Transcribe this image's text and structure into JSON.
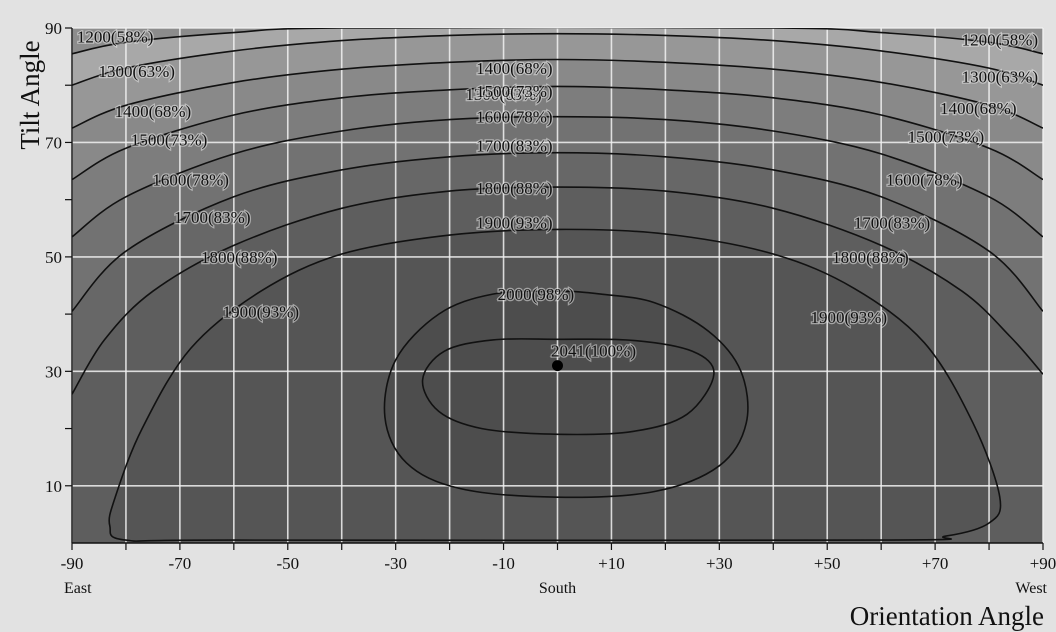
{
  "chart_data": {
    "type": "contour",
    "title": "",
    "xlabel": "Orientation Angle",
    "ylabel": "Tilt Angle",
    "xlim": [
      -90,
      90
    ],
    "ylim": [
      0,
      90
    ],
    "x_ticks": [
      {
        "value": -90,
        "label": "-90"
      },
      {
        "value": -70,
        "label": "-70"
      },
      {
        "value": -50,
        "label": "-50"
      },
      {
        "value": -30,
        "label": "-30"
      },
      {
        "value": -10,
        "label": "-10"
      },
      {
        "value": 10,
        "label": "+10"
      },
      {
        "value": 30,
        "label": "+30"
      },
      {
        "value": 50,
        "label": "+50"
      },
      {
        "value": 70,
        "label": "+70"
      },
      {
        "value": 90,
        "label": "+90"
      }
    ],
    "x_sublabels": [
      {
        "value": -90,
        "label": "East"
      },
      {
        "value": 0,
        "label": "South"
      },
      {
        "value": 90,
        "label": "West"
      }
    ],
    "y_ticks": [
      {
        "value": 10,
        "label": "10"
      },
      {
        "value": 30,
        "label": "30"
      },
      {
        "value": 50,
        "label": "50"
      },
      {
        "value": 70,
        "label": "70"
      },
      {
        "value": 90,
        "label": "90"
      }
    ],
    "grid": true,
    "colors": {
      "levels": [
        "#8c8c8c",
        "#a8a8a8",
        "#979797",
        "#898989",
        "#7d7d7d",
        "#727272",
        "#676767",
        "#5e5e5e",
        "#555555",
        "#4d4d4d"
      ]
    },
    "maximum": {
      "x": 0,
      "y": 31,
      "label": "2041(100%)"
    },
    "contours": [
      {
        "level": 1200,
        "label": "1200(58%)",
        "labels_at": [
          [
            -82,
            88.5
          ],
          [
            82,
            88
          ]
        ],
        "open": true,
        "points": [
          [
            -90,
            85.5
          ],
          [
            -80,
            87.5
          ],
          [
            -60,
            89.2
          ],
          [
            -40,
            90
          ],
          [
            40,
            90
          ],
          [
            60,
            89.2
          ],
          [
            80,
            87.5
          ],
          [
            90,
            85.5
          ]
        ]
      },
      {
        "level": 1300,
        "label": "1300(63%)",
        "labels_at": [
          [
            -78,
            82.5
          ],
          [
            -10,
            78.5
          ],
          [
            82,
            81.5
          ]
        ],
        "open": true,
        "points": [
          [
            -90,
            80
          ],
          [
            -80,
            83
          ],
          [
            -60,
            86
          ],
          [
            -40,
            87.8
          ],
          [
            -20,
            88.7
          ],
          [
            0,
            89
          ],
          [
            20,
            88.7
          ],
          [
            40,
            87.8
          ],
          [
            60,
            86
          ],
          [
            80,
            83
          ],
          [
            90,
            80
          ]
        ]
      },
      {
        "level": 1400,
        "label": "1400(68%)",
        "labels_at": [
          [
            -75,
            75.5
          ],
          [
            -8,
            83
          ],
          [
            78,
            76
          ]
        ],
        "open": true,
        "points": [
          [
            -90,
            72.5
          ],
          [
            -80,
            76.5
          ],
          [
            -60,
            80.5
          ],
          [
            -40,
            82.8
          ],
          [
            -20,
            84
          ],
          [
            0,
            84.5
          ],
          [
            20,
            84
          ],
          [
            40,
            82.8
          ],
          [
            60,
            80.5
          ],
          [
            80,
            76.5
          ],
          [
            90,
            72.5
          ]
        ]
      },
      {
        "level": 1500,
        "label": "1500(73%)",
        "labels_at": [
          [
            -72,
            70.5
          ],
          [
            -8,
            79
          ],
          [
            72,
            71
          ]
        ],
        "open": true,
        "points": [
          [
            -90,
            63.5
          ],
          [
            -80,
            69
          ],
          [
            -60,
            74.8
          ],
          [
            -40,
            77.8
          ],
          [
            -20,
            79.2
          ],
          [
            0,
            79.8
          ],
          [
            20,
            79.2
          ],
          [
            40,
            77.8
          ],
          [
            60,
            74.8
          ],
          [
            80,
            69
          ],
          [
            90,
            63.5
          ]
        ]
      },
      {
        "level": 1600,
        "label": "1600(78%)",
        "labels_at": [
          [
            -68,
            63.5
          ],
          [
            -8,
            74.5
          ],
          [
            68,
            63.5
          ]
        ],
        "open": true,
        "points": [
          [
            -90,
            53.5
          ],
          [
            -80,
            60.5
          ],
          [
            -60,
            68
          ],
          [
            -40,
            72
          ],
          [
            -20,
            74
          ],
          [
            0,
            74.5
          ],
          [
            20,
            74
          ],
          [
            40,
            72
          ],
          [
            60,
            68
          ],
          [
            80,
            60.5
          ],
          [
            90,
            53.5
          ]
        ]
      },
      {
        "level": 1700,
        "label": "1700(83%)",
        "labels_at": [
          [
            -64,
            57
          ],
          [
            -8,
            69.5
          ],
          [
            62,
            56
          ]
        ],
        "open": true,
        "points": [
          [
            -90,
            40.5
          ],
          [
            -80,
            51
          ],
          [
            -60,
            60.5
          ],
          [
            -40,
            65.2
          ],
          [
            -20,
            67.5
          ],
          [
            0,
            68.2
          ],
          [
            20,
            67.5
          ],
          [
            40,
            65.2
          ],
          [
            60,
            60.5
          ],
          [
            80,
            51
          ],
          [
            90,
            40.5
          ]
        ]
      },
      {
        "level": 1800,
        "label": "1800(88%)",
        "labels_at": [
          [
            -59,
            50
          ],
          [
            -8,
            62
          ],
          [
            58,
            50
          ]
        ],
        "open": true,
        "points": [
          [
            -90,
            26
          ],
          [
            -84,
            35.5
          ],
          [
            -75,
            44
          ],
          [
            -60,
            52
          ],
          [
            -40,
            58.5
          ],
          [
            -20,
            61.5
          ],
          [
            0,
            62.2
          ],
          [
            20,
            61.5
          ],
          [
            40,
            58.5
          ],
          [
            60,
            52
          ],
          [
            75,
            44
          ],
          [
            84,
            36
          ],
          [
            90,
            29.5
          ]
        ]
      },
      {
        "level": 1900,
        "label": "1900(93%)",
        "labels_at": [
          [
            -55,
            40.5
          ],
          [
            -8,
            56
          ],
          [
            54,
            39.5
          ]
        ],
        "open": false,
        "points": [
          [
            -80,
            0.5
          ],
          [
            -83,
            3
          ],
          [
            -82,
            8
          ],
          [
            -77,
            20
          ],
          [
            -68,
            34
          ],
          [
            -55,
            44
          ],
          [
            -40,
            50.5
          ],
          [
            -20,
            53.8
          ],
          [
            0,
            54.8
          ],
          [
            20,
            54
          ],
          [
            40,
            50.5
          ],
          [
            55,
            44.5
          ],
          [
            68,
            35
          ],
          [
            77,
            21
          ],
          [
            82,
            8
          ],
          [
            80,
            3.5
          ],
          [
            72,
            1.2
          ],
          [
            60,
            0.5
          ],
          [
            -60,
            0.5
          ]
        ]
      },
      {
        "level": 2000,
        "label": "2000(98%)",
        "labels_at": [
          [
            -4,
            43.5
          ]
        ],
        "open": false,
        "points": [
          [
            0,
            44
          ],
          [
            -12,
            43.5
          ],
          [
            -22,
            40
          ],
          [
            -30,
            32
          ],
          [
            -32,
            22
          ],
          [
            -28,
            14
          ],
          [
            -18,
            9.5
          ],
          [
            0,
            8
          ],
          [
            18,
            9
          ],
          [
            30,
            13.5
          ],
          [
            35,
            21
          ],
          [
            34,
            30
          ],
          [
            28,
            37
          ],
          [
            18,
            42
          ],
          [
            8,
            43.5
          ]
        ]
      },
      {
        "level": 2041,
        "label": "2041(100%)",
        "labels_at": [],
        "open": false,
        "points": [
          [
            0,
            35.6
          ],
          [
            -12,
            35.5
          ],
          [
            -21,
            33.5
          ],
          [
            -25,
            28.5
          ],
          [
            -22,
            23
          ],
          [
            -14,
            20
          ],
          [
            0,
            19
          ],
          [
            14,
            19.5
          ],
          [
            24,
            22.5
          ],
          [
            29,
            29.5
          ],
          [
            25,
            33.5
          ],
          [
            14,
            35.4
          ]
        ]
      }
    ]
  }
}
